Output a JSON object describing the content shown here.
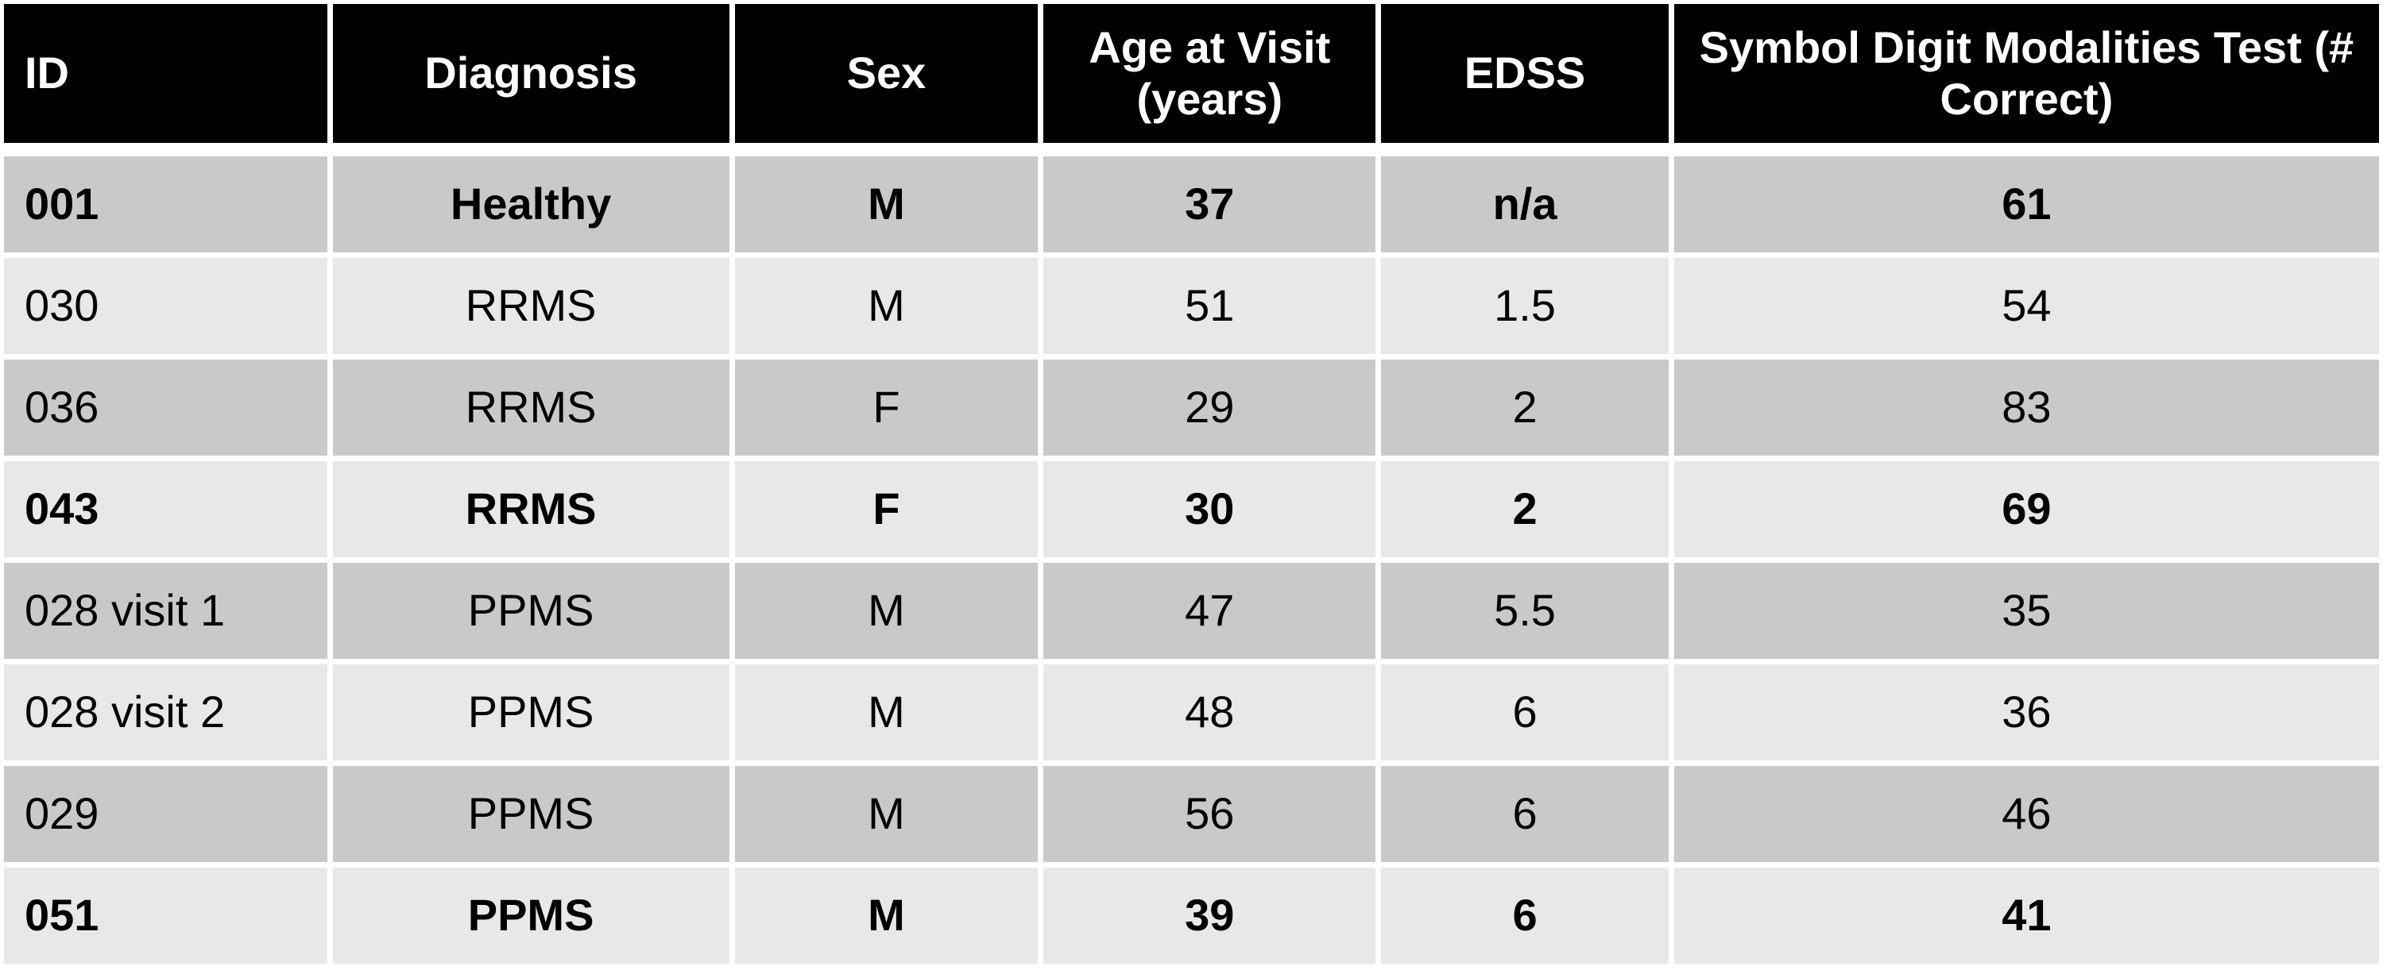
{
  "table": {
    "columns": [
      "ID",
      "Diagnosis",
      "Sex",
      "Age at Visit (years)",
      "EDSS",
      "Symbol Digit Modalities Test (# Correct)"
    ],
    "rows": [
      {
        "id": "001",
        "diagnosis": "Healthy",
        "sex": "M",
        "age": "37",
        "edss": "n/a",
        "sdmt": "61",
        "bold": true
      },
      {
        "id": "030",
        "diagnosis": "RRMS",
        "sex": "M",
        "age": "51",
        "edss": "1.5",
        "sdmt": "54",
        "bold": false
      },
      {
        "id": "036",
        "diagnosis": "RRMS",
        "sex": "F",
        "age": "29",
        "edss": "2",
        "sdmt": "83",
        "bold": false
      },
      {
        "id": "043",
        "diagnosis": "RRMS",
        "sex": "F",
        "age": "30",
        "edss": "2",
        "sdmt": "69",
        "bold": true
      },
      {
        "id": "028 visit 1",
        "diagnosis": "PPMS",
        "sex": "M",
        "age": "47",
        "edss": "5.5",
        "sdmt": "35",
        "bold": false
      },
      {
        "id": "028 visit 2",
        "diagnosis": "PPMS",
        "sex": "M",
        "age": "48",
        "edss": "6",
        "sdmt": "36",
        "bold": false
      },
      {
        "id": "029",
        "diagnosis": "PPMS",
        "sex": "M",
        "age": "56",
        "edss": "6",
        "sdmt": "46",
        "bold": false
      },
      {
        "id": "051",
        "diagnosis": "PPMS",
        "sex": "M",
        "age": "39",
        "edss": "6",
        "sdmt": "41",
        "bold": true
      }
    ],
    "colors": {
      "header_bg": "#000000",
      "header_text": "#ffffff",
      "row_dark": "#c9c9c9",
      "row_light": "#e8e8e8",
      "body_text": "#000000",
      "gap": "#ffffff"
    }
  },
  "chart_data": {
    "type": "table",
    "title": "",
    "columns": [
      "ID",
      "Diagnosis",
      "Sex",
      "Age at Visit (years)",
      "EDSS",
      "Symbol Digit Modalities Test (# Correct)"
    ],
    "rows": [
      [
        "001",
        "Healthy",
        "M",
        37,
        "n/a",
        61
      ],
      [
        "030",
        "RRMS",
        "M",
        51,
        1.5,
        54
      ],
      [
        "036",
        "RRMS",
        "F",
        29,
        2,
        83
      ],
      [
        "043",
        "RRMS",
        "F",
        30,
        2,
        69
      ],
      [
        "028 visit 1",
        "PPMS",
        "M",
        47,
        5.5,
        35
      ],
      [
        "028 visit 2",
        "PPMS",
        "M",
        48,
        6,
        36
      ],
      [
        "029",
        "PPMS",
        "M",
        56,
        6,
        46
      ],
      [
        "051",
        "PPMS",
        "M",
        39,
        6,
        41
      ]
    ]
  }
}
